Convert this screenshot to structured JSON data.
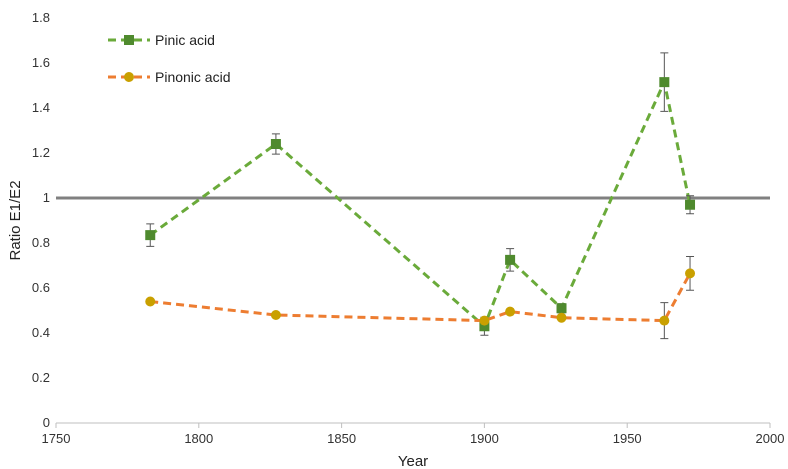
{
  "chart_data": {
    "type": "line",
    "title": "",
    "xlabel": "Year",
    "ylabel": "Ratio E1/E2",
    "xlim": [
      1750,
      2000
    ],
    "ylim": [
      0,
      1.8
    ],
    "xticks": [
      1750,
      1800,
      1850,
      1900,
      1950,
      2000
    ],
    "yticks": [
      0,
      0.2,
      0.4,
      0.6,
      0.8,
      1,
      1.2,
      1.4,
      1.6,
      1.8
    ],
    "xtick_labels": [
      "1750",
      "1800",
      "1850",
      "1900",
      "1950",
      "2000"
    ],
    "ytick_labels": [
      "0",
      "0.2",
      "0.4",
      "0.6",
      "0.8",
      "1",
      "1.2",
      "1.4",
      "1.6",
      "1.8"
    ],
    "grid": false,
    "legend_position": "top-left",
    "reference_line": {
      "y": 1,
      "color": "#808080"
    },
    "series": [
      {
        "name": "Pinic acid",
        "color": "#6aaa3a",
        "marker": "square",
        "marker_color": "#4f8a2e",
        "line_style": "dashed",
        "points": [
          {
            "x": 1783,
            "y": 0.835,
            "err": 0.05
          },
          {
            "x": 1827,
            "y": 1.24,
            "err": 0.045
          },
          {
            "x": 1900,
            "y": 0.43,
            "err": 0.04
          },
          {
            "x": 1909,
            "y": 0.725,
            "err": 0.05
          },
          {
            "x": 1927,
            "y": 0.51,
            "err": 0.02
          },
          {
            "x": 1963,
            "y": 1.515,
            "err": 0.13
          },
          {
            "x": 1972,
            "y": 0.97,
            "err": 0.04
          }
        ]
      },
      {
        "name": "Pinonic acid",
        "color": "#ed7d31",
        "marker": "circle",
        "marker_color": "#c9a000",
        "line_style": "dashed",
        "points": [
          {
            "x": 1783,
            "y": 0.54,
            "err": 0
          },
          {
            "x": 1827,
            "y": 0.48,
            "err": 0
          },
          {
            "x": 1900,
            "y": 0.455,
            "err": 0
          },
          {
            "x": 1909,
            "y": 0.495,
            "err": 0
          },
          {
            "x": 1927,
            "y": 0.468,
            "err": 0
          },
          {
            "x": 1963,
            "y": 0.455,
            "err": 0.08
          },
          {
            "x": 1972,
            "y": 0.665,
            "err": 0.075
          }
        ]
      }
    ]
  }
}
